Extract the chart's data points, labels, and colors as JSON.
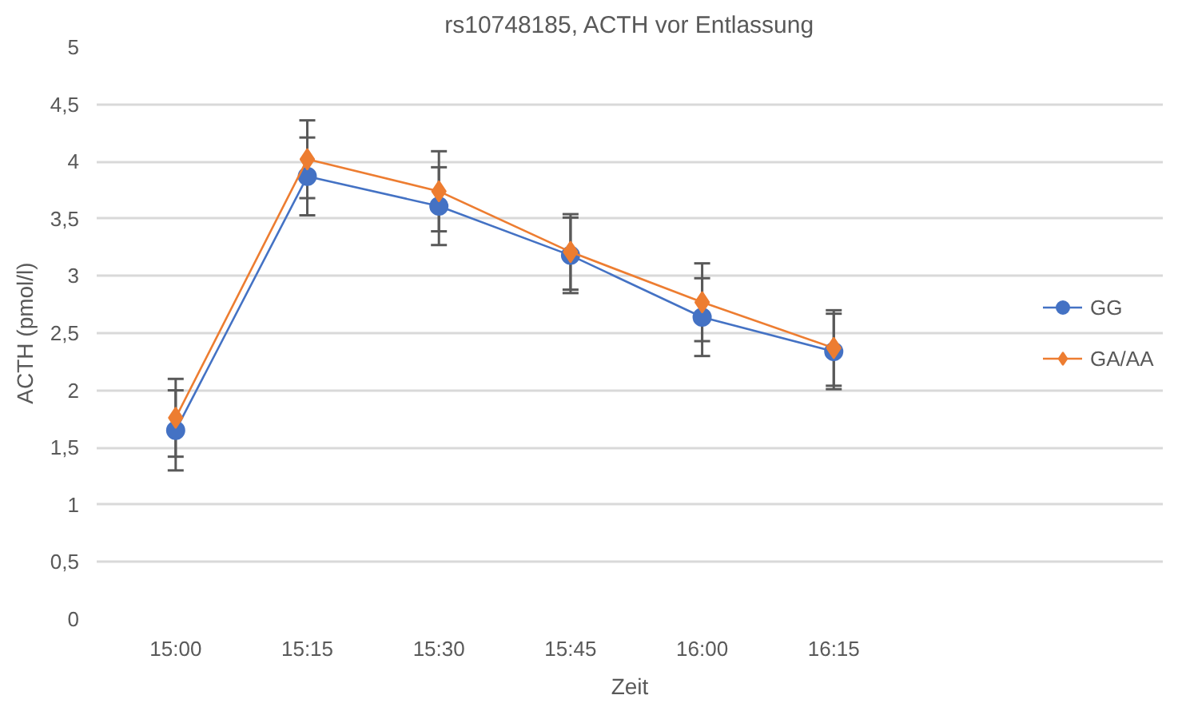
{
  "chart_data": {
    "type": "line",
    "title": "rs10748185, ACTH vor Entlassung",
    "xlabel": "Zeit",
    "ylabel": "ACTH (pmol/l)",
    "categories": [
      "15:00",
      "15:15",
      "15:30",
      "15:45",
      "16:00",
      "16:15"
    ],
    "series": [
      {
        "name": "GG",
        "color": "#4472c4",
        "marker": "circle",
        "values": [
          1.65,
          3.87,
          3.61,
          3.18,
          2.64,
          2.34
        ],
        "errors": [
          0.35,
          0.34,
          0.34,
          0.33,
          0.34,
          0.33
        ]
      },
      {
        "name": "GA/AA",
        "color": "#ed7d31",
        "marker": "diamond",
        "values": [
          1.76,
          4.02,
          3.74,
          3.21,
          2.77,
          2.37
        ],
        "errors": [
          0.34,
          0.34,
          0.35,
          0.33,
          0.34,
          0.33
        ]
      }
    ],
    "ylim": [
      0,
      5
    ],
    "yticks": [
      0,
      {
        "value": 0.5,
        "label": "0,5"
      },
      1,
      {
        "value": 1.5,
        "label": "1,5"
      },
      2,
      {
        "value": 2.5,
        "label": "2,5"
      },
      3,
      {
        "value": 3.5,
        "label": "3,5"
      },
      4,
      {
        "value": 4.5,
        "label": "4,5"
      },
      5
    ],
    "grid": "y",
    "legend": "right",
    "line_style": "solid"
  }
}
